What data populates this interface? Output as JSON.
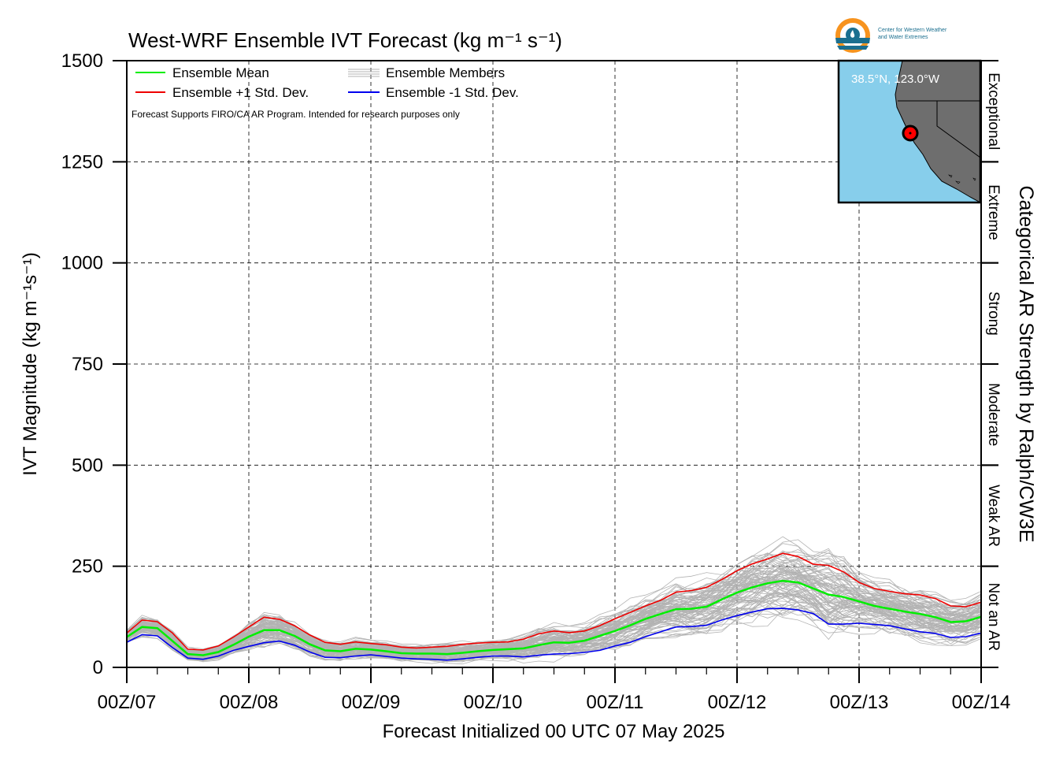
{
  "title": "West-WRF Ensemble IVT Forecast (kg m⁻¹ s⁻¹)",
  "logo": {
    "line1": "Center for Western Weather",
    "line2": "and Water Extremes"
  },
  "colors": {
    "mean": "#00ee00",
    "plus_std": "#ee0000",
    "minus_std": "#0000ee",
    "members": "#b3b3b3",
    "ocean": "#87ceeb",
    "land": "#6e6e6e",
    "logo_orange": "#f7931e",
    "logo_blue": "#1b6f8f"
  },
  "legend": {
    "mean": "Ensemble Mean",
    "plus_std": "Ensemble +1 Std. Dev.",
    "members": "Ensemble Members",
    "minus_std": "Ensemble -1 Std. Dev."
  },
  "note": "Forecast Supports FIRO/CA AR Program. Intended for research purposes only",
  "map": {
    "coords": "38.5°N, 123.0°W"
  },
  "categories_title": "Categorical AR Strength by Ralph/CW3E",
  "categories": [
    {
      "label": "Not an AR",
      "range": [
        0,
        250
      ]
    },
    {
      "label": "Weak AR",
      "range": [
        250,
        500
      ]
    },
    {
      "label": "Moderate",
      "range": [
        500,
        750
      ]
    },
    {
      "label": "Strong",
      "range": [
        750,
        1000
      ]
    },
    {
      "label": "Extreme",
      "range": [
        1000,
        1250
      ]
    },
    {
      "label": "Exceptional",
      "range": [
        1250,
        1500
      ]
    }
  ],
  "chart_data": {
    "type": "line",
    "title": "West-WRF Ensemble IVT Forecast (kg m⁻¹ s⁻¹)",
    "xlabel": "Forecast Initialized 00 UTC 07 May 2025",
    "ylabel": "IVT Magnitude (kg m⁻¹s⁻¹)",
    "ylim": [
      0,
      1500
    ],
    "xlim_hours": [
      0,
      168
    ],
    "yticks": [
      0,
      250,
      500,
      750,
      1000,
      1250,
      1500
    ],
    "xtick_labels": [
      "00Z/07",
      "00Z/08",
      "00Z/09",
      "00Z/10",
      "00Z/11",
      "00Z/12",
      "00Z/13",
      "00Z/14"
    ],
    "grid": true,
    "legend_position": "top-left",
    "x_hours": [
      0,
      3,
      6,
      9,
      12,
      15,
      18,
      21,
      24,
      27,
      30,
      33,
      36,
      39,
      42,
      45,
      48,
      51,
      54,
      57,
      60,
      63,
      66,
      69,
      72,
      75,
      78,
      81,
      84,
      87,
      90,
      93,
      96,
      99,
      102,
      105,
      108,
      111,
      114,
      117,
      120,
      123,
      126,
      129,
      132,
      135,
      138,
      141,
      144,
      147,
      150,
      153,
      156,
      159,
      162,
      165,
      168
    ],
    "series": [
      {
        "name": "Ensemble Mean",
        "values": [
          75,
          100,
          97,
          65,
          33,
          30,
          38,
          56,
          76,
          92,
          92,
          78,
          57,
          42,
          40,
          46,
          44,
          40,
          35,
          34,
          34,
          33,
          36,
          40,
          43,
          45,
          47,
          55,
          62,
          61,
          66,
          78,
          90,
          104,
          120,
          132,
          144,
          145,
          150,
          168,
          185,
          198,
          208,
          214,
          210,
          195,
          180,
          174,
          163,
          152,
          145,
          138,
          132,
          124,
          112,
          114,
          125
        ]
      },
      {
        "name": "Ensemble +1 Std. Dev.",
        "values": [
          85,
          117,
          113,
          85,
          45,
          43,
          53,
          75,
          100,
          124,
          119,
          103,
          80,
          62,
          57,
          63,
          59,
          56,
          50,
          48,
          50,
          52,
          57,
          60,
          62,
          63,
          70,
          83,
          90,
          86,
          90,
          103,
          120,
          136,
          152,
          166,
          186,
          190,
          198,
          217,
          239,
          256,
          268,
          282,
          274,
          255,
          252,
          236,
          210,
          195,
          188,
          182,
          179,
          170,
          152,
          150,
          161
        ]
      },
      {
        "name": "Ensemble -1 Std. Dev.",
        "values": [
          62,
          81,
          78,
          49,
          23,
          20,
          28,
          42,
          52,
          61,
          65,
          55,
          38,
          25,
          24,
          28,
          31,
          27,
          23,
          21,
          20,
          18,
          21,
          25,
          28,
          28,
          26,
          30,
          33,
          34,
          37,
          42,
          53,
          62,
          76,
          88,
          100,
          101,
          104,
          117,
          128,
          137,
          145,
          146,
          142,
          133,
          107,
          107,
          109,
          106,
          103,
          95,
          88,
          84,
          74,
          76,
          85
        ]
      }
    ]
  }
}
